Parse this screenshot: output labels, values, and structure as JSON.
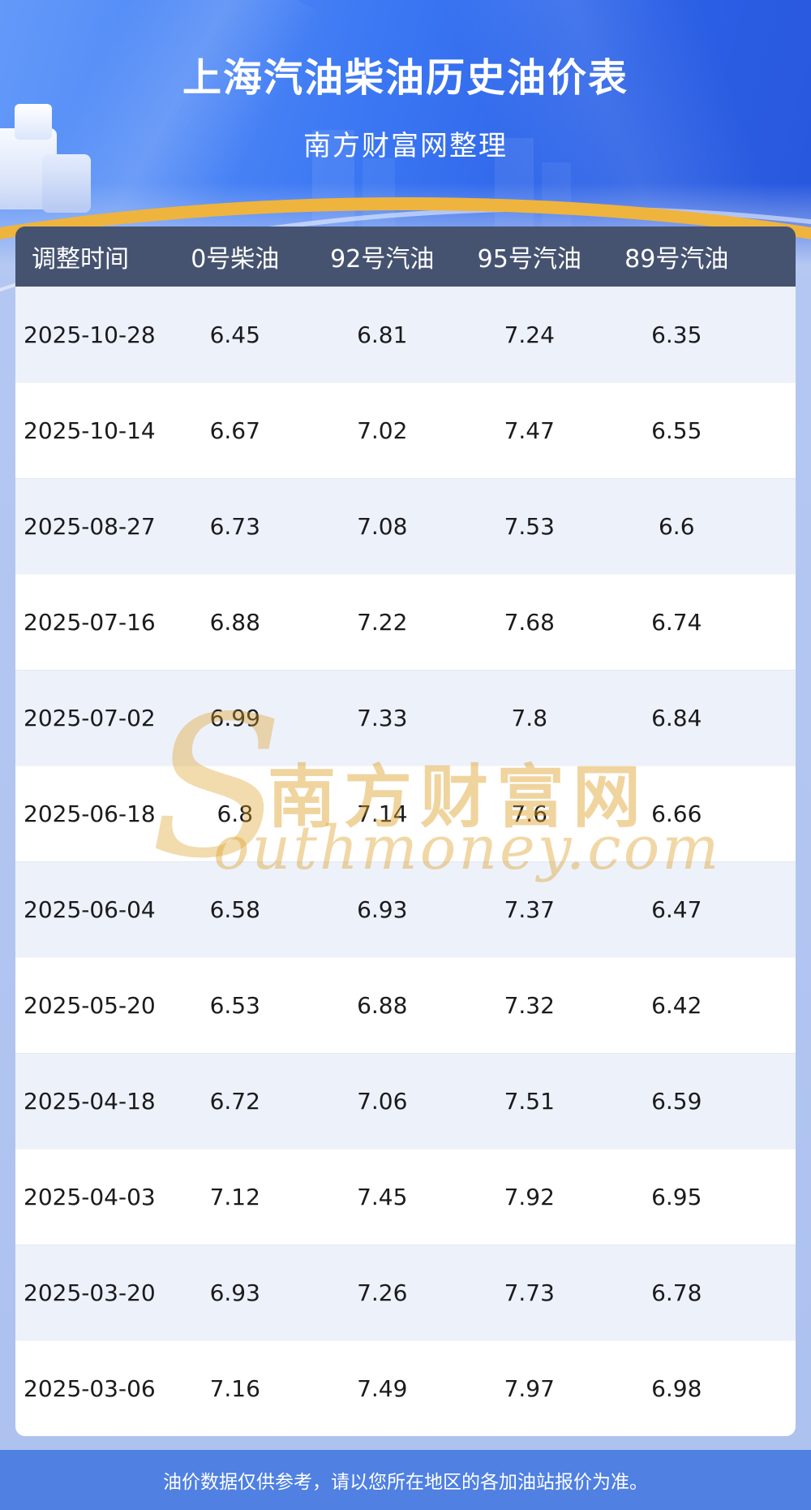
{
  "page": {
    "title": "上海汽油柴油历史油价表",
    "subtitle": "南方财富网整理",
    "footer_note": "油价数据仅供参考，请以您所在地区的各加油站报价为准。"
  },
  "watermark": {
    "initial": "S",
    "cn_text": "南方财富网",
    "latin_text": "outhmoney.com"
  },
  "colors": {
    "hero_blue": "#2e63e9",
    "page_bg": "#b3c6f1",
    "accent_gold": "#efb43d",
    "table_header_bg": "#465370",
    "row_alt_bg": "#edf1fa",
    "footer_bg": "#4f80e2"
  },
  "chart_data": {
    "type": "table",
    "title": "上海汽油柴油历史油价表",
    "subtitle": "南方财富网整理",
    "columns": [
      "调整时间",
      "0号柴油",
      "92号汽油",
      "95号汽油",
      "89号汽油"
    ],
    "rows": [
      [
        "2025-10-28",
        "6.45",
        "6.81",
        "7.24",
        "6.35"
      ],
      [
        "2025-10-14",
        "6.67",
        "7.02",
        "7.47",
        "6.55"
      ],
      [
        "2025-08-27",
        "6.73",
        "7.08",
        "7.53",
        "6.6"
      ],
      [
        "2025-07-16",
        "6.88",
        "7.22",
        "7.68",
        "6.74"
      ],
      [
        "2025-07-02",
        "6.99",
        "7.33",
        "7.8",
        "6.84"
      ],
      [
        "2025-06-18",
        "6.8",
        "7.14",
        "7.6",
        "6.66"
      ],
      [
        "2025-06-04",
        "6.58",
        "6.93",
        "7.37",
        "6.47"
      ],
      [
        "2025-05-20",
        "6.53",
        "6.88",
        "7.32",
        "6.42"
      ],
      [
        "2025-04-18",
        "6.72",
        "7.06",
        "7.51",
        "6.59"
      ],
      [
        "2025-04-03",
        "7.12",
        "7.45",
        "7.92",
        "6.95"
      ],
      [
        "2025-03-20",
        "6.93",
        "7.26",
        "7.73",
        "6.78"
      ],
      [
        "2025-03-06",
        "7.16",
        "7.49",
        "7.97",
        "6.98"
      ]
    ]
  }
}
